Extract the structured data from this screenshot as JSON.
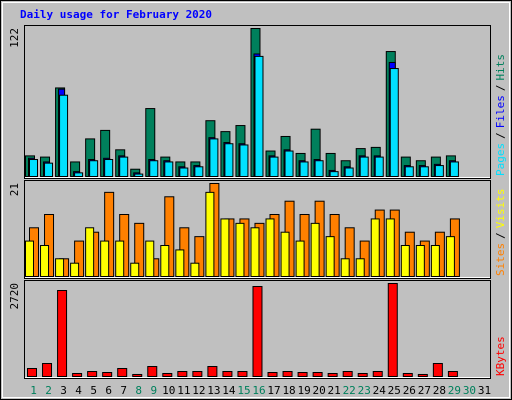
{
  "chart_data": [
    {
      "type": "bar",
      "title": "Daily usage for February 2020",
      "title_color": "#0000FF",
      "ylim": [
        0,
        122
      ],
      "yticks": [
        122
      ],
      "legend_separator": "/",
      "series": [
        {
          "name": "Pages",
          "color": "#00E0FF",
          "values": [
            14,
            11,
            67,
            3,
            13,
            14,
            16,
            2,
            13,
            12,
            7,
            8,
            31,
            27,
            26,
            99,
            16,
            21,
            12,
            13,
            4,
            7,
            16,
            16,
            89,
            8,
            8,
            9,
            12,
            null,
            null
          ]
        },
        {
          "name": "Files",
          "color": "#0000FF",
          "values": [
            15,
            12,
            72,
            4,
            14,
            15,
            17,
            3,
            14,
            13,
            8,
            9,
            32,
            28,
            27,
            101,
            17,
            22,
            13,
            14,
            5,
            8,
            17,
            17,
            94,
            9,
            9,
            10,
            13,
            null,
            null
          ]
        },
        {
          "name": "Hits",
          "color": "#00805C",
          "values": [
            17,
            16,
            73,
            12,
            31,
            38,
            22,
            6,
            56,
            16,
            12,
            12,
            46,
            37,
            42,
            122,
            21,
            33,
            19,
            39,
            19,
            13,
            23,
            24,
            103,
            16,
            13,
            16,
            17,
            null,
            null
          ]
        }
      ]
    },
    {
      "type": "bar",
      "ylim": [
        0,
        21
      ],
      "yticks": [
        21
      ],
      "series": [
        {
          "name": "Sites",
          "color": "#FF8000",
          "values": [
            11,
            14,
            4,
            8,
            10,
            19,
            14,
            12,
            4,
            18,
            11,
            9,
            21,
            13,
            13,
            12,
            14,
            17,
            14,
            17,
            14,
            11,
            8,
            15,
            15,
            10,
            8,
            10,
            13,
            null,
            null
          ]
        },
        {
          "name": "Visits",
          "color": "#FFFF00",
          "values": [
            8,
            7,
            4,
            3,
            11,
            8,
            8,
            3,
            8,
            7,
            6,
            3,
            19,
            13,
            12,
            11,
            13,
            10,
            8,
            12,
            9,
            4,
            4,
            13,
            13,
            7,
            7,
            7,
            9,
            null,
            null
          ]
        }
      ]
    },
    {
      "type": "bar",
      "ylim": [
        0,
        2720
      ],
      "yticks": [
        2720
      ],
      "categories": [
        "1",
        "2",
        "3",
        "4",
        "5",
        "6",
        "7",
        "8",
        "9",
        "10",
        "11",
        "12",
        "13",
        "14",
        "15",
        "16",
        "17",
        "18",
        "19",
        "20",
        "21",
        "22",
        "23",
        "24",
        "25",
        "26",
        "27",
        "28",
        "29",
        "30",
        "31"
      ],
      "weekend_categories": [
        "1",
        "2",
        "8",
        "9",
        "15",
        "16",
        "22",
        "23",
        "29",
        "30"
      ],
      "weekend_color": "#00805C",
      "series": [
        {
          "name": "KBytes",
          "color": "#FF0000",
          "values": [
            234,
            380,
            2515,
            88,
            146,
            117,
            234,
            59,
            292,
            88,
            146,
            146,
            292,
            146,
            146,
            2632,
            117,
            146,
            117,
            117,
            88,
            146,
            88,
            146,
            2720,
            88,
            59,
            380,
            146,
            null,
            null
          ]
        }
      ]
    }
  ]
}
